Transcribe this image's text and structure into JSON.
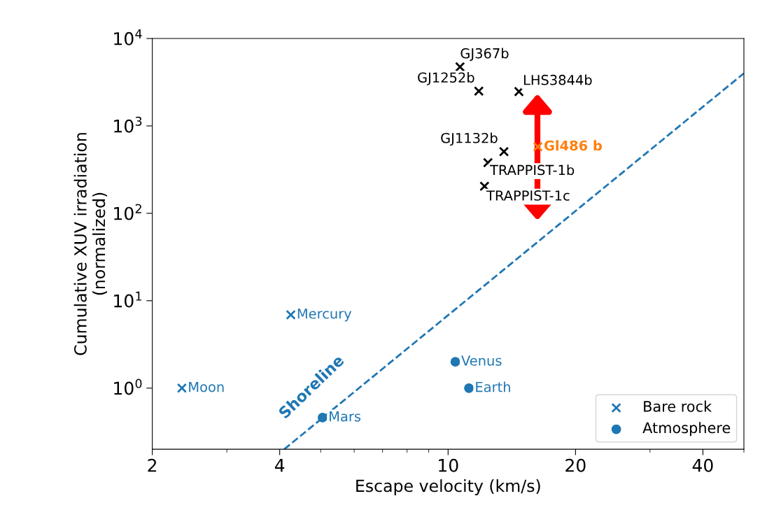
{
  "chart_data": {
    "type": "scatter",
    "xlabel": "Escape velocity (km/s)",
    "ylabel": "Cumulative XUV irradiation\n(normalized)",
    "log": "xy",
    "xlim": [
      2,
      50
    ],
    "ylim": [
      0.2,
      10000
    ],
    "xticks": [
      2,
      4,
      10,
      20,
      40
    ],
    "yticks": [
      {
        "value": 1,
        "label": "10$^{0}$"
      },
      {
        "value": 10,
        "label": "10$^{1}$"
      },
      {
        "value": 100,
        "label": "10$^{2}$"
      },
      {
        "value": 1000,
        "label": "10$^{3}$"
      },
      {
        "value": 10000,
        "label": "10$^{4}$"
      }
    ],
    "grid": false,
    "legend": "bottom right",
    "series": [
      {
        "name": "Bare rock",
        "color": "#1f77b4",
        "marker": "cross",
        "x": [
          2.35,
          4.25
        ],
        "values": [
          1.0,
          6.9
        ],
        "value_labels": [
          "Moon",
          "Mercury"
        ]
      },
      {
        "name": "Atmosphere",
        "color": "#1f77b4",
        "marker": "circle",
        "x": [
          5.05,
          10.4,
          11.2
        ],
        "values": [
          0.46,
          2.0,
          1.0
        ],
        "value_labels": [
          "Mars",
          "Venus",
          "Earth"
        ]
      },
      {
        "color": "#000000",
        "marker": "cross",
        "x": [
          10.67,
          11.82,
          14.7,
          13.55,
          12.42,
          12.19
        ],
        "values": [
          4730,
          2500,
          2470,
          508,
          380,
          204
        ],
        "value_labels": [
          "GJ367b",
          "GJ1252b",
          "LHS3844b",
          "GJ1132b",
          "TRAPPIST-1b",
          "TRAPPIST-1c"
        ]
      },
      {
        "color": "#ff7f0e",
        "marker": "cross",
        "x": [
          16.3
        ],
        "values": [
          578
        ],
        "value_labels": [
          "Gl486 b"
        ]
      },
      {
        "type": "line",
        "color": "#1f77b4",
        "line_style": "dashed",
        "marker": "none",
        "x": [
          4.1,
          50
        ],
        "values": [
          0.2,
          4000
        ]
      }
    ],
    "annotations": [
      "Shoreline"
    ]
  }
}
